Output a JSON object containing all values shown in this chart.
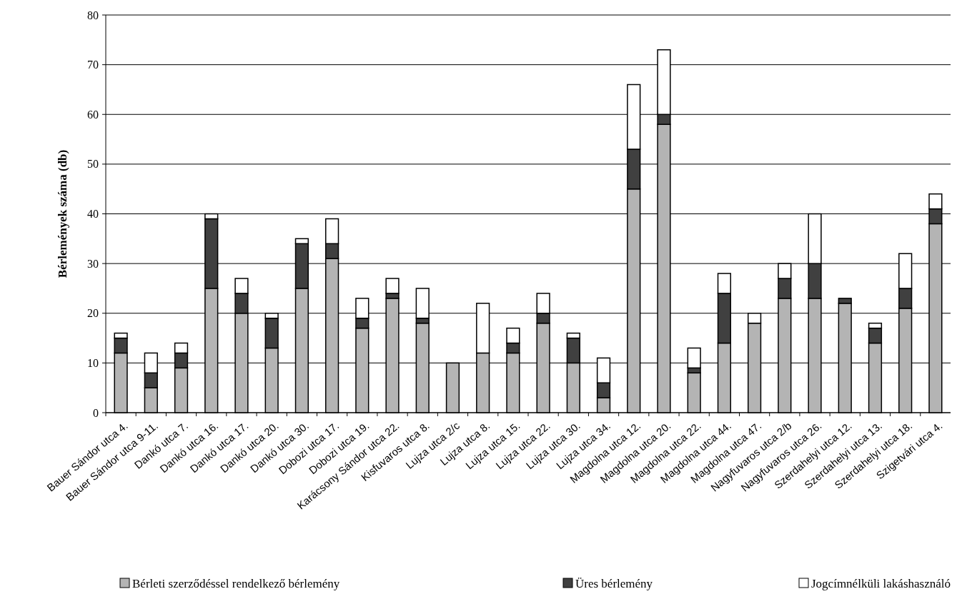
{
  "chart_data": {
    "type": "bar",
    "stacked": true,
    "ylabel": "Bérlemények száma (db)",
    "categories": [
      "Bauer Sándor utca 4.",
      "Bauer Sándor utca 9-11.",
      "Dankó utca 7.",
      "Dankó utca 16.",
      "Dankó utca 17.",
      "Dankó utca 20.",
      "Dankó utca 30.",
      "Dobozi utca 17.",
      "Dobozi utca 19.",
      "Karácsony Sándor utca 22.",
      "Kisfuvaros utca 8.",
      "Lujza utca 2/c",
      "Lujza utca 8.",
      "Lujza utca 15.",
      "Lujza utca 22.",
      "Lujza utca 30.",
      "Lujza utca 34.",
      "Magdolna utca 12.",
      "Magdolna utca 20.",
      "Magdolna utca 22.",
      "Magdolna utca 44.",
      "Magdolna utca 47.",
      "Nagyfuvaros utca 2/b",
      "Nagyfuvaros utca 26.",
      "Szerdahelyi utca 12.",
      "Szerdahelyi utca 13.",
      "Szerdahelyi utca 18.",
      "Szigetvári utca 4."
    ],
    "series": [
      {
        "name": "Bérleti szerződéssel rendelkező bérlemény",
        "color": "#b4b4b4",
        "values": [
          12,
          5,
          9,
          25,
          20,
          13,
          25,
          31,
          17,
          23,
          18,
          10,
          12,
          12,
          18,
          10,
          3,
          45,
          58,
          8,
          14,
          18,
          23,
          23,
          22,
          14,
          21,
          38
        ]
      },
      {
        "name": "Üres bérlemény",
        "color": "#404040",
        "values": [
          3,
          3,
          3,
          14,
          4,
          6,
          9,
          3,
          2,
          1,
          1,
          0,
          0,
          2,
          2,
          5,
          3,
          8,
          2,
          1,
          10,
          0,
          4,
          7,
          1,
          3,
          4,
          3
        ]
      },
      {
        "name": "Jogcímnélküli lakáshasználó",
        "color": "#ffffff",
        "values": [
          1,
          4,
          2,
          1,
          3,
          1,
          1,
          5,
          4,
          3,
          6,
          0,
          10,
          3,
          4,
          1,
          5,
          13,
          13,
          4,
          4,
          2,
          3,
          10,
          0,
          1,
          7,
          3
        ]
      }
    ],
    "ylim": [
      0,
      80
    ],
    "yticks": [
      0,
      10,
      20,
      30,
      40,
      50,
      60,
      70,
      80
    ],
    "grid": "y",
    "legend": "bottom"
  }
}
